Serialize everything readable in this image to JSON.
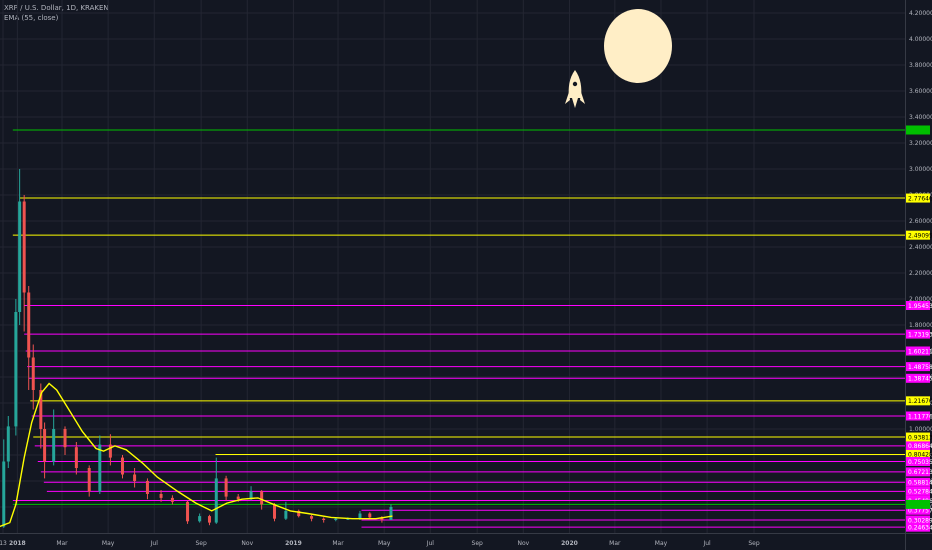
{
  "header": {
    "symbol_line": "XRP / U.S. Dollar, 1D, KRAKEN",
    "indicator_line": "EMA (55, close)"
  },
  "colors": {
    "background": "#131722",
    "grid": "#232632",
    "axis_text": "#b2b5be",
    "candle_up": "#26a69a",
    "candle_down": "#ef5350",
    "ema": "#ffff00",
    "yellow_level": "#ffff00",
    "magenta_level": "#ff00ff",
    "green_level": "#00c000",
    "moon": "#ffeec6",
    "rocket": "#ffeec6"
  },
  "decorations": {
    "moon_icon": "full-moon",
    "rocket_icon": "rocket"
  },
  "chart_data": {
    "type": "candlestick",
    "ylim": [
      0.2,
      4.3
    ],
    "y_ticks": [
      "4.20000",
      "4.00000",
      "3.80000",
      "3.60000",
      "3.40000",
      "3.20000",
      "3.00000",
      "2.80000",
      "2.60000",
      "2.40000",
      "2.20000",
      "2.00000",
      "1.80000",
      "1.60000",
      "1.40000",
      "1.20000",
      "1.00000",
      "0.80000",
      "0.60000",
      "0.40000"
    ],
    "y_tick_values": [
      4.2,
      4.0,
      3.8,
      3.6,
      3.4,
      3.2,
      3.0,
      2.8,
      2.6,
      2.4,
      2.2,
      2.0,
      1.8,
      1.6,
      1.4,
      1.2,
      1.0,
      0.8,
      0.6,
      0.4
    ],
    "x_ticks": [
      "13",
      "2018",
      "Mar",
      "May",
      "Jul",
      "Sep",
      "Nov",
      "2019",
      "Mar",
      "May",
      "Jul",
      "Sep",
      "Nov",
      "2020",
      "Mar",
      "May",
      "Jul",
      "Sep"
    ],
    "x_tick_dates": [
      "2017-12-13",
      "2018-01-01",
      "2018-03-01",
      "2018-05-01",
      "2018-07-01",
      "2018-09-01",
      "2018-11-01",
      "2019-01-01",
      "2019-03-01",
      "2019-05-01",
      "2019-07-01",
      "2019-09-01",
      "2019-11-01",
      "2020-01-01",
      "2020-03-01",
      "2020-05-01",
      "2020-07-01",
      "2020-09-01"
    ],
    "price_bars": [
      {
        "date": "2017-12-04",
        "open": 0.24,
        "high": 0.26,
        "low": 0.23,
        "close": 0.25
      },
      {
        "date": "2017-12-14",
        "open": 0.25,
        "high": 0.92,
        "low": 0.24,
        "close": 0.75
      },
      {
        "date": "2017-12-20",
        "open": 0.75,
        "high": 1.1,
        "low": 0.7,
        "close": 1.02
      },
      {
        "date": "2017-12-30",
        "open": 1.02,
        "high": 2.0,
        "low": 0.95,
        "close": 1.9
      },
      {
        "date": "2018-01-04",
        "open": 1.9,
        "high": 3.0,
        "low": 1.8,
        "close": 2.75
      },
      {
        "date": "2018-01-10",
        "open": 2.75,
        "high": 2.8,
        "low": 1.75,
        "close": 2.05
      },
      {
        "date": "2018-01-16",
        "open": 2.05,
        "high": 2.1,
        "low": 1.3,
        "close": 1.55
      },
      {
        "date": "2018-01-22",
        "open": 1.55,
        "high": 1.65,
        "low": 1.15,
        "close": 1.3
      },
      {
        "date": "2018-02-01",
        "open": 1.3,
        "high": 1.35,
        "low": 0.85,
        "close": 1.0
      },
      {
        "date": "2018-02-06",
        "open": 1.0,
        "high": 1.05,
        "low": 0.62,
        "close": 0.75
      },
      {
        "date": "2018-02-18",
        "open": 0.75,
        "high": 1.15,
        "low": 0.72,
        "close": 1.0
      },
      {
        "date": "2018-03-05",
        "open": 1.0,
        "high": 1.02,
        "low": 0.8,
        "close": 0.86
      },
      {
        "date": "2018-03-20",
        "open": 0.86,
        "high": 0.9,
        "low": 0.65,
        "close": 0.7
      },
      {
        "date": "2018-04-06",
        "open": 0.7,
        "high": 0.72,
        "low": 0.48,
        "close": 0.52
      },
      {
        "date": "2018-04-20",
        "open": 0.52,
        "high": 0.95,
        "low": 0.5,
        "close": 0.88
      },
      {
        "date": "2018-05-04",
        "open": 0.88,
        "high": 0.96,
        "low": 0.72,
        "close": 0.78
      },
      {
        "date": "2018-05-20",
        "open": 0.78,
        "high": 0.8,
        "low": 0.62,
        "close": 0.65
      },
      {
        "date": "2018-06-05",
        "open": 0.65,
        "high": 0.7,
        "low": 0.55,
        "close": 0.6
      },
      {
        "date": "2018-06-22",
        "open": 0.6,
        "high": 0.62,
        "low": 0.46,
        "close": 0.5
      },
      {
        "date": "2018-07-10",
        "open": 0.5,
        "high": 0.53,
        "low": 0.44,
        "close": 0.47
      },
      {
        "date": "2018-07-25",
        "open": 0.47,
        "high": 0.49,
        "low": 0.42,
        "close": 0.44
      },
      {
        "date": "2018-08-14",
        "open": 0.44,
        "high": 0.45,
        "low": 0.27,
        "close": 0.29
      },
      {
        "date": "2018-08-30",
        "open": 0.29,
        "high": 0.35,
        "low": 0.28,
        "close": 0.33
      },
      {
        "date": "2018-09-12",
        "open": 0.33,
        "high": 0.34,
        "low": 0.26,
        "close": 0.28
      },
      {
        "date": "2018-09-21",
        "open": 0.28,
        "high": 0.78,
        "low": 0.27,
        "close": 0.62
      },
      {
        "date": "2018-10-04",
        "open": 0.62,
        "high": 0.64,
        "low": 0.45,
        "close": 0.48
      },
      {
        "date": "2018-10-20",
        "open": 0.48,
        "high": 0.5,
        "low": 0.44,
        "close": 0.46
      },
      {
        "date": "2018-11-06",
        "open": 0.46,
        "high": 0.56,
        "low": 0.45,
        "close": 0.52
      },
      {
        "date": "2018-11-20",
        "open": 0.52,
        "high": 0.53,
        "low": 0.38,
        "close": 0.42
      },
      {
        "date": "2018-12-07",
        "open": 0.42,
        "high": 0.43,
        "low": 0.29,
        "close": 0.31
      },
      {
        "date": "2018-12-22",
        "open": 0.31,
        "high": 0.44,
        "low": 0.3,
        "close": 0.37
      },
      {
        "date": "2019-01-08",
        "open": 0.37,
        "high": 0.38,
        "low": 0.32,
        "close": 0.33
      },
      {
        "date": "2019-01-25",
        "open": 0.33,
        "high": 0.34,
        "low": 0.29,
        "close": 0.31
      },
      {
        "date": "2019-02-10",
        "open": 0.31,
        "high": 0.32,
        "low": 0.28,
        "close": 0.3
      },
      {
        "date": "2019-02-26",
        "open": 0.3,
        "high": 0.32,
        "low": 0.29,
        "close": 0.31
      },
      {
        "date": "2019-03-14",
        "open": 0.31,
        "high": 0.32,
        "low": 0.3,
        "close": 0.31
      },
      {
        "date": "2019-03-30",
        "open": 0.31,
        "high": 0.37,
        "low": 0.3,
        "close": 0.35
      },
      {
        "date": "2019-04-12",
        "open": 0.35,
        "high": 0.36,
        "low": 0.31,
        "close": 0.32
      },
      {
        "date": "2019-04-28",
        "open": 0.32,
        "high": 0.33,
        "low": 0.28,
        "close": 0.3
      },
      {
        "date": "2019-05-10",
        "open": 0.3,
        "high": 0.42,
        "low": 0.3,
        "close": 0.4
      }
    ],
    "ema_55": [
      {
        "date": "2017-12-04",
        "value": 0.24
      },
      {
        "date": "2017-12-22",
        "value": 0.28
      },
      {
        "date": "2017-12-30",
        "value": 0.42
      },
      {
        "date": "2018-01-10",
        "value": 0.78
      },
      {
        "date": "2018-01-20",
        "value": 1.05
      },
      {
        "date": "2018-02-02",
        "value": 1.28
      },
      {
        "date": "2018-02-12",
        "value": 1.35
      },
      {
        "date": "2018-02-22",
        "value": 1.3
      },
      {
        "date": "2018-03-10",
        "value": 1.15
      },
      {
        "date": "2018-03-28",
        "value": 0.98
      },
      {
        "date": "2018-04-15",
        "value": 0.85
      },
      {
        "date": "2018-04-25",
        "value": 0.83
      },
      {
        "date": "2018-05-10",
        "value": 0.87
      },
      {
        "date": "2018-05-25",
        "value": 0.84
      },
      {
        "date": "2018-06-15",
        "value": 0.74
      },
      {
        "date": "2018-07-05",
        "value": 0.63
      },
      {
        "date": "2018-08-01",
        "value": 0.52
      },
      {
        "date": "2018-08-25",
        "value": 0.43
      },
      {
        "date": "2018-09-15",
        "value": 0.37
      },
      {
        "date": "2018-10-05",
        "value": 0.43
      },
      {
        "date": "2018-10-25",
        "value": 0.46
      },
      {
        "date": "2018-11-15",
        "value": 0.47
      },
      {
        "date": "2018-12-10",
        "value": 0.41
      },
      {
        "date": "2018-12-28",
        "value": 0.37
      },
      {
        "date": "2019-01-20",
        "value": 0.35
      },
      {
        "date": "2019-02-20",
        "value": 0.32
      },
      {
        "date": "2019-03-20",
        "value": 0.31
      },
      {
        "date": "2019-04-20",
        "value": 0.31
      },
      {
        "date": "2019-05-12",
        "value": 0.33
      }
    ],
    "levels": [
      {
        "price": 3.3,
        "color": "green",
        "label": "",
        "start": "2017-12-26"
      },
      {
        "price": 2.77646,
        "color": "yellow",
        "label": "2.77646",
        "start": "2018-01-04"
      },
      {
        "price": 2.49095,
        "color": "yellow",
        "label": "2.49095",
        "start": "2017-12-26"
      },
      {
        "price": 1.95,
        "color": "magenta",
        "label": "1.95453",
        "start": "2018-01-10"
      },
      {
        "price": 1.73,
        "color": "magenta",
        "label": "1.73193",
        "start": "2018-01-10"
      },
      {
        "price": 1.6,
        "color": "magenta",
        "label": "1.60211",
        "start": "2018-01-12"
      },
      {
        "price": 1.48,
        "color": "magenta",
        "label": "1.48758",
        "start": "2018-01-14"
      },
      {
        "price": 1.39,
        "color": "magenta",
        "label": "1.38745",
        "start": "2018-01-16"
      },
      {
        "price": 1.2167,
        "color": "yellow",
        "label": "1.21670",
        "start": "2018-01-18"
      },
      {
        "price": 1.1,
        "color": "magenta",
        "label": "1.11776",
        "start": "2018-01-20"
      },
      {
        "price": 0.93813,
        "color": "yellow",
        "label": "0.93813",
        "start": "2018-01-22"
      },
      {
        "price": 0.87,
        "color": "magenta",
        "label": "0.86864",
        "start": "2018-01-24"
      },
      {
        "price": 0.80428,
        "color": "yellow",
        "label": "0.80428",
        "start": "2018-09-20"
      },
      {
        "price": 0.75,
        "color": "magenta",
        "label": "0.75035",
        "start": "2018-01-28"
      },
      {
        "price": 0.67,
        "color": "magenta",
        "label": "0.67213",
        "start": "2018-02-01"
      },
      {
        "price": 0.59,
        "color": "magenta",
        "label": "0.58814",
        "start": "2018-02-05"
      },
      {
        "price": 0.52,
        "color": "magenta",
        "label": "0.52784",
        "start": "2018-02-09"
      },
      {
        "price": 0.45,
        "color": "magenta",
        "label": "0.45496",
        "start": "2017-12-26"
      },
      {
        "price": 0.42,
        "color": "green",
        "label": "",
        "start": "2017-12-26"
      },
      {
        "price": 0.375,
        "color": "magenta",
        "label": "0.37757",
        "start": "2019-04-01"
      },
      {
        "price": 0.3,
        "color": "magenta",
        "label": "0.30289",
        "start": "2019-04-01"
      },
      {
        "price": 0.245,
        "color": "magenta",
        "label": "0.24634",
        "start": "2019-04-01"
      }
    ],
    "xlabel": "",
    "ylabel": ""
  }
}
